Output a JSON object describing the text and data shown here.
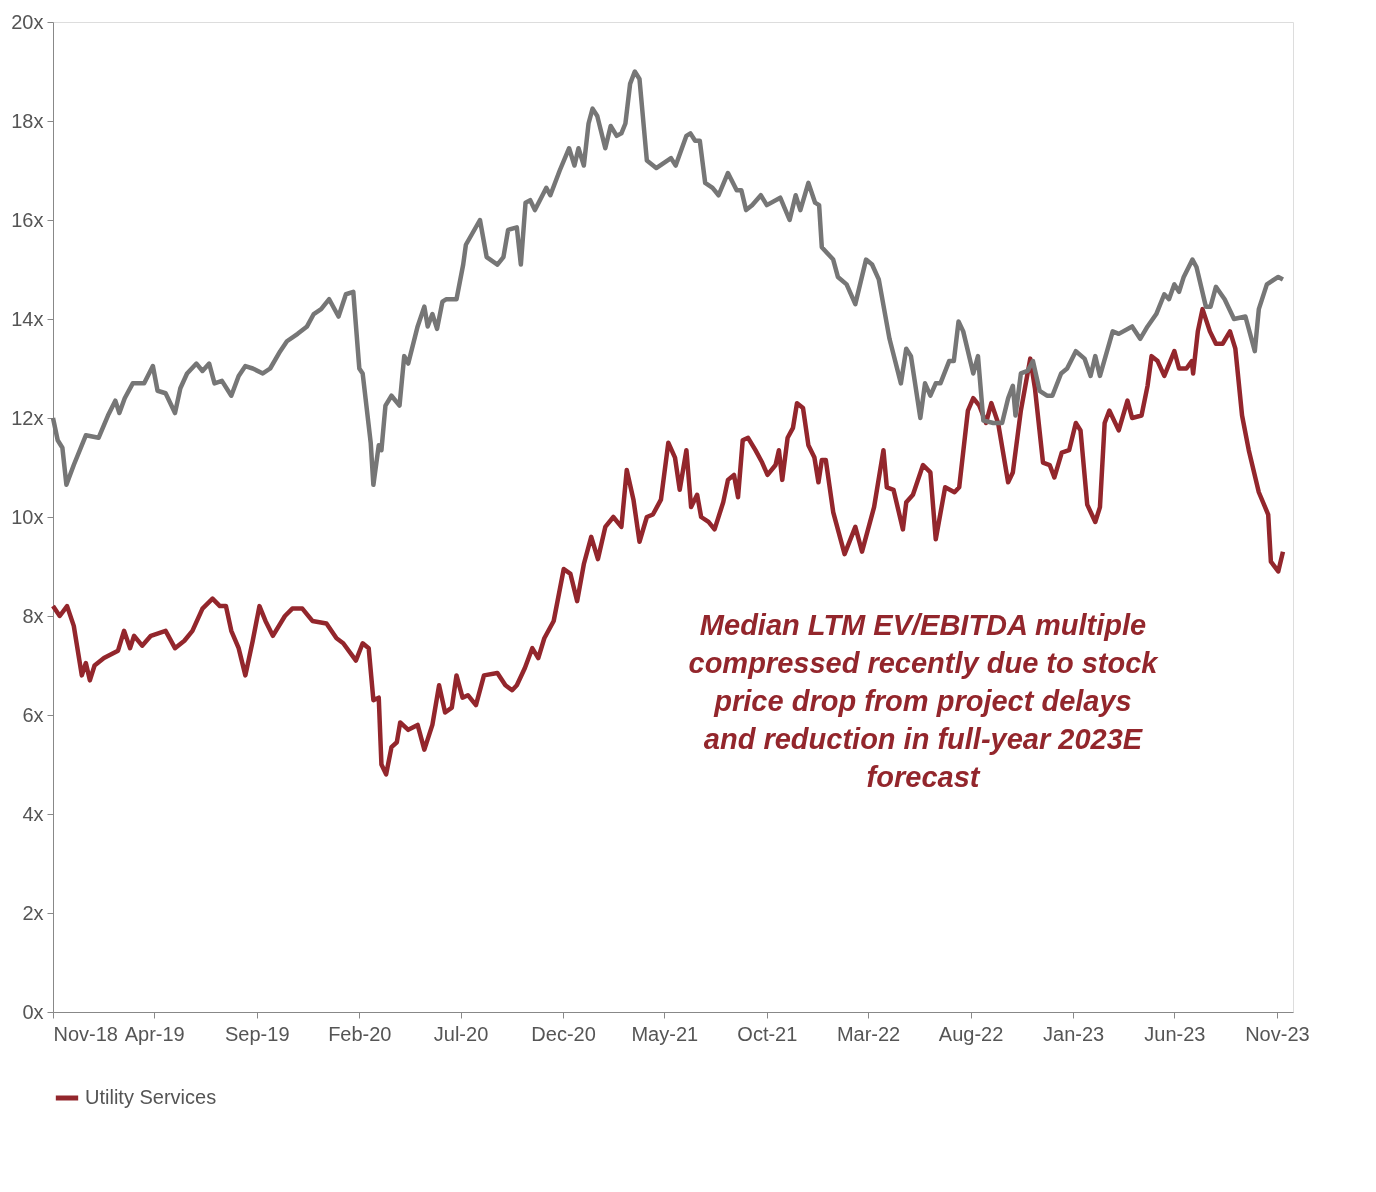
{
  "chart_data": {
    "type": "line",
    "annotations": [
      "Median LTM EV/EBITDA multiple compressed recently due to stock price drop from project delays and reduction in full-year 2023E forecast"
    ],
    "xlim": [
      "2018-11-01",
      "2023-11-25"
    ],
    "xticks": [
      {
        "value": "2018-11-01",
        "label": "Nov-18"
      },
      {
        "value": "2019-04-01",
        "label": "Apr-19"
      },
      {
        "value": "2019-09-01",
        "label": "Sep-19"
      },
      {
        "value": "2020-02-01",
        "label": "Feb-20"
      },
      {
        "value": "2020-07-01",
        "label": "Jul-20"
      },
      {
        "value": "2020-12-01",
        "label": "Dec-20"
      },
      {
        "value": "2021-05-01",
        "label": "May-21"
      },
      {
        "value": "2021-10-01",
        "label": "Oct-21"
      },
      {
        "value": "2022-03-01",
        "label": "Mar-22"
      },
      {
        "value": "2022-08-01",
        "label": "Aug-22"
      },
      {
        "value": "2023-01-01",
        "label": "Jan-23"
      },
      {
        "value": "2023-06-01",
        "label": "Jun-23"
      },
      {
        "value": "2023-11-01",
        "label": "Nov-23"
      }
    ],
    "ylim": [
      0,
      20
    ],
    "yticks": [
      {
        "value": 0,
        "label": "0x"
      },
      {
        "value": 2,
        "label": "2x"
      },
      {
        "value": 4,
        "label": "4x"
      },
      {
        "value": 6,
        "label": "6x"
      },
      {
        "value": 8,
        "label": "8x"
      },
      {
        "value": 10,
        "label": "10x"
      },
      {
        "value": 12,
        "label": "12x"
      },
      {
        "value": 14,
        "label": "14x"
      },
      {
        "value": 16,
        "label": "16x"
      },
      {
        "value": 18,
        "label": "18x"
      },
      {
        "value": 20,
        "label": "20x"
      }
    ],
    "grid": false,
    "legend": "bottom",
    "marker": "none",
    "line_style": "solid",
    "series": [
      {
        "name": "Utility Services",
        "color": "#93262c",
        "x": [
          "2018-11-01",
          "2018-11-11",
          "2018-11-22",
          "2018-12-02",
          "2018-12-14",
          "2018-12-20",
          "2018-12-26",
          "2019-01-02",
          "2019-01-16",
          "2019-02-06",
          "2019-02-15",
          "2019-02-24",
          "2019-03-02",
          "2019-03-14",
          "2019-03-27",
          "2019-04-18",
          "2019-05-02",
          "2019-05-16",
          "2019-05-28",
          "2019-06-12",
          "2019-06-27",
          "2019-07-08",
          "2019-07-17",
          "2019-07-25",
          "2019-08-05",
          "2019-08-15",
          "2019-08-26",
          "2019-09-05",
          "2019-09-14",
          "2019-09-25",
          "2019-10-13",
          "2019-10-24",
          "2019-11-08",
          "2019-11-23",
          "2019-12-14",
          "2019-12-29",
          "2020-01-08",
          "2020-01-27",
          "2020-02-06",
          "2020-02-15",
          "2020-02-22",
          "2020-03-01",
          "2020-03-05",
          "2020-03-12",
          "2020-03-20",
          "2020-03-28",
          "2020-04-02",
          "2020-04-14",
          "2020-04-28",
          "2020-05-08",
          "2020-05-20",
          "2020-05-30",
          "2020-06-08",
          "2020-06-18",
          "2020-06-25",
          "2020-07-04",
          "2020-07-12",
          "2020-07-24",
          "2020-08-05",
          "2020-08-25",
          "2020-09-06",
          "2020-09-16",
          "2020-09-23",
          "2020-10-05",
          "2020-10-16",
          "2020-10-25",
          "2020-11-03",
          "2020-11-17",
          "2020-12-02",
          "2020-12-12",
          "2020-12-22",
          "2021-01-01",
          "2021-01-12",
          "2021-01-22",
          "2021-02-02",
          "2021-02-14",
          "2021-02-26",
          "2021-03-06",
          "2021-03-16",
          "2021-03-25",
          "2021-04-05",
          "2021-04-14",
          "2021-04-26",
          "2021-05-07",
          "2021-05-17",
          "2021-05-24",
          "2021-06-03",
          "2021-06-10",
          "2021-06-19",
          "2021-06-25",
          "2021-07-06",
          "2021-07-15",
          "2021-07-28",
          "2021-08-04",
          "2021-08-13",
          "2021-08-19",
          "2021-08-26",
          "2021-09-03",
          "2021-09-14",
          "2021-09-24",
          "2021-10-02",
          "2021-10-14",
          "2021-10-19",
          "2021-10-24",
          "2021-11-01",
          "2021-11-09",
          "2021-11-15",
          "2021-11-24",
          "2021-12-02",
          "2021-12-11",
          "2021-12-17",
          "2021-12-22",
          "2021-12-28",
          "2022-01-08",
          "2022-01-25",
          "2022-02-10",
          "2022-02-20",
          "2022-03-10",
          "2022-03-24",
          "2022-03-29",
          "2022-04-08",
          "2022-04-22",
          "2022-04-27",
          "2022-05-07",
          "2022-05-22",
          "2022-06-02",
          "2022-06-10",
          "2022-06-24",
          "2022-07-08",
          "2022-07-15",
          "2022-07-28",
          "2022-08-05",
          "2022-08-14",
          "2022-08-24",
          "2022-09-01",
          "2022-09-11",
          "2022-09-26",
          "2022-10-03",
          "2022-10-15",
          "2022-10-29",
          "2022-11-05",
          "2022-11-17",
          "2022-11-27",
          "2022-12-04",
          "2022-12-15",
          "2022-12-26",
          "2023-01-05",
          "2023-01-12",
          "2023-01-22",
          "2023-02-03",
          "2023-02-10",
          "2023-02-17",
          "2023-02-24",
          "2023-03-10",
          "2023-03-23",
          "2023-03-30",
          "2023-04-13",
          "2023-04-22",
          "2023-04-28",
          "2023-05-07",
          "2023-05-17",
          "2023-06-01",
          "2023-06-08",
          "2023-06-19",
          "2023-06-27",
          "2023-06-29",
          "2023-07-06",
          "2023-07-13",
          "2023-07-24",
          "2023-08-02",
          "2023-08-12",
          "2023-08-23",
          "2023-08-31",
          "2023-09-10",
          "2023-09-20",
          "2023-10-05",
          "2023-10-19",
          "2023-10-23",
          "2023-11-03",
          "2023-11-10"
        ],
        "values": [
          8.2,
          8.0,
          8.2,
          7.8,
          6.8,
          7.05,
          6.7,
          7.0,
          7.15,
          7.3,
          7.7,
          7.35,
          7.6,
          7.4,
          7.6,
          7.7,
          7.35,
          7.5,
          7.7,
          8.15,
          8.35,
          8.2,
          8.2,
          7.7,
          7.35,
          6.8,
          7.5,
          8.2,
          7.9,
          7.6,
          8.0,
          8.15,
          8.15,
          7.9,
          7.85,
          7.55,
          7.45,
          7.1,
          7.45,
          7.35,
          6.3,
          6.35,
          5.0,
          4.8,
          5.35,
          5.45,
          5.85,
          5.7,
          5.8,
          5.3,
          5.8,
          6.6,
          6.05,
          6.15,
          6.8,
          6.35,
          6.4,
          6.2,
          6.8,
          6.85,
          6.6,
          6.5,
          6.6,
          6.95,
          7.35,
          7.15,
          7.55,
          7.9,
          8.95,
          8.85,
          8.3,
          9.05,
          9.6,
          9.15,
          9.8,
          10.0,
          9.8,
          10.95,
          10.35,
          9.5,
          10.0,
          10.05,
          10.35,
          11.5,
          11.2,
          10.55,
          11.35,
          10.2,
          10.45,
          10.0,
          9.9,
          9.75,
          10.3,
          10.75,
          10.85,
          10.4,
          11.55,
          11.6,
          11.35,
          11.1,
          10.85,
          11.05,
          11.35,
          10.75,
          11.6,
          11.8,
          12.3,
          12.2,
          11.45,
          11.2,
          10.7,
          11.15,
          11.15,
          10.1,
          9.25,
          9.8,
          9.3,
          10.2,
          11.35,
          10.6,
          10.55,
          9.75,
          10.3,
          10.45,
          11.05,
          10.9,
          9.55,
          10.6,
          10.5,
          10.6,
          12.15,
          12.4,
          12.25,
          11.9,
          12.3,
          11.9,
          10.7,
          10.9,
          12.15,
          13.2,
          12.6,
          11.1,
          11.05,
          10.8,
          11.3,
          11.35,
          11.9,
          11.75,
          10.25,
          9.9,
          10.2,
          11.9,
          12.15,
          11.75,
          12.35,
          12.0,
          12.05,
          12.65,
          13.25,
          13.15,
          12.85,
          13.35,
          13.0,
          13.0,
          13.15,
          12.9,
          13.75,
          14.2,
          13.75,
          13.5,
          13.5,
          13.75,
          13.4,
          12.05,
          11.35,
          10.5,
          10.05,
          9.1,
          8.9,
          9.3
        ]
      },
      {
        "color": "#767676",
        "x": [
          "2018-11-01",
          "2018-11-08",
          "2018-11-15",
          "2018-11-21",
          "2018-12-02",
          "2018-12-20",
          "2019-01-08",
          "2019-01-22",
          "2019-02-02",
          "2019-02-08",
          "2019-02-16",
          "2019-02-28",
          "2019-03-17",
          "2019-03-30",
          "2019-04-06",
          "2019-04-18",
          "2019-05-02",
          "2019-05-10",
          "2019-05-20",
          "2019-06-03",
          "2019-06-12",
          "2019-06-22",
          "2019-06-30",
          "2019-07-11",
          "2019-07-25",
          "2019-08-05",
          "2019-08-15",
          "2019-08-26",
          "2019-09-10",
          "2019-09-21",
          "2019-10-06",
          "2019-10-16",
          "2019-11-01",
          "2019-11-15",
          "2019-11-25",
          "2019-12-06",
          "2019-12-18",
          "2020-01-01",
          "2020-01-12",
          "2020-01-23",
          "2020-02-01",
          "2020-02-06",
          "2020-02-18",
          "2020-02-22",
          "2020-03-01",
          "2020-03-05",
          "2020-03-11",
          "2020-03-20",
          "2020-04-01",
          "2020-04-08",
          "2020-04-14",
          "2020-04-28",
          "2020-05-08",
          "2020-05-13",
          "2020-05-20",
          "2020-05-27",
          "2020-06-04",
          "2020-06-10",
          "2020-06-25",
          "2020-07-05",
          "2020-07-09",
          "2020-07-30",
          "2020-08-09",
          "2020-08-25",
          "2020-09-03",
          "2020-09-10",
          "2020-09-23",
          "2020-09-29",
          "2020-10-06",
          "2020-10-13",
          "2020-10-20",
          "2020-11-06",
          "2020-11-12",
          "2020-11-26",
          "2020-12-10",
          "2020-12-18",
          "2020-12-24",
          "2021-01-01",
          "2021-01-08",
          "2021-01-14",
          "2021-01-21",
          "2021-02-02",
          "2021-02-10",
          "2021-02-19",
          "2021-02-26",
          "2021-03-04",
          "2021-03-11",
          "2021-03-18",
          "2021-03-25",
          "2021-04-05",
          "2021-04-19",
          "2021-05-11",
          "2021-05-18",
          "2021-06-03",
          "2021-06-09",
          "2021-06-16",
          "2021-06-23",
          "2021-07-01",
          "2021-07-12",
          "2021-07-21",
          "2021-08-04",
          "2021-08-17",
          "2021-08-24",
          "2021-08-31",
          "2021-09-09",
          "2021-09-22",
          "2021-10-01",
          "2021-10-21",
          "2021-11-04",
          "2021-11-13",
          "2021-11-20",
          "2021-12-02",
          "2021-12-12",
          "2021-12-18",
          "2021-12-22",
          "2022-01-08",
          "2022-01-15",
          "2022-01-28",
          "2022-02-10",
          "2022-02-26",
          "2022-03-07",
          "2022-03-17",
          "2022-04-02",
          "2022-04-19",
          "2022-04-27",
          "2022-05-04",
          "2022-05-18",
          "2022-05-25",
          "2022-06-02",
          "2022-06-10",
          "2022-06-17",
          "2022-06-30",
          "2022-07-07",
          "2022-07-14",
          "2022-07-21",
          "2022-08-05",
          "2022-08-12",
          "2022-08-20",
          "2022-09-04",
          "2022-09-17",
          "2022-09-26",
          "2022-10-03",
          "2022-10-07",
          "2022-10-15",
          "2022-10-25",
          "2022-11-02",
          "2022-11-12",
          "2022-11-23",
          "2022-12-01",
          "2022-12-14",
          "2022-12-23",
          "2023-01-05",
          "2023-01-18",
          "2023-01-27",
          "2023-02-03",
          "2023-02-10",
          "2023-03-01",
          "2023-03-10",
          "2023-03-30",
          "2023-04-11",
          "2023-04-22",
          "2023-05-05",
          "2023-05-17",
          "2023-05-24",
          "2023-06-01",
          "2023-06-08",
          "2023-06-15",
          "2023-06-28",
          "2023-07-04",
          "2023-07-18",
          "2023-07-25",
          "2023-08-02",
          "2023-08-15",
          "2023-08-29",
          "2023-09-15",
          "2023-09-29",
          "2023-10-05",
          "2023-10-17",
          "2023-11-03",
          "2023-11-10"
        ],
        "values": [
          12.0,
          11.55,
          11.4,
          10.65,
          11.05,
          11.65,
          11.6,
          12.05,
          12.35,
          12.1,
          12.4,
          12.7,
          12.7,
          13.05,
          12.55,
          12.5,
          12.1,
          12.6,
          12.9,
          13.1,
          12.95,
          13.1,
          12.7,
          12.75,
          12.45,
          12.85,
          13.05,
          13.0,
          12.9,
          13.0,
          13.35,
          13.55,
          13.7,
          13.85,
          14.1,
          14.2,
          14.4,
          14.05,
          14.5,
          14.55,
          13.0,
          12.9,
          11.5,
          10.65,
          11.45,
          11.35,
          12.25,
          12.45,
          12.25,
          13.25,
          13.1,
          13.85,
          14.25,
          13.85,
          14.1,
          13.8,
          14.35,
          14.4,
          14.4,
          15.1,
          15.5,
          16.0,
          15.25,
          15.1,
          15.25,
          15.8,
          15.85,
          15.1,
          16.35,
          16.4,
          16.2,
          16.65,
          16.5,
          17.0,
          17.45,
          17.1,
          17.45,
          17.1,
          17.95,
          18.25,
          18.1,
          17.45,
          17.9,
          17.7,
          17.75,
          17.95,
          18.75,
          19.0,
          18.85,
          17.2,
          17.05,
          17.25,
          17.1,
          17.7,
          17.75,
          17.6,
          17.6,
          16.75,
          16.65,
          16.5,
          16.95,
          16.6,
          16.6,
          16.2,
          16.3,
          16.5,
          16.3,
          16.45,
          16.0,
          16.5,
          16.2,
          16.75,
          16.35,
          16.3,
          15.45,
          15.2,
          14.85,
          14.7,
          14.3,
          15.2,
          15.1,
          14.8,
          13.6,
          12.7,
          13.4,
          13.25,
          12.0,
          12.7,
          12.45,
          12.7,
          12.7,
          13.15,
          13.15,
          13.95,
          13.75,
          12.9,
          13.25,
          11.95,
          11.9,
          11.9,
          12.4,
          12.65,
          12.05,
          12.9,
          12.95,
          13.15,
          12.55,
          12.45,
          12.45,
          12.9,
          13.0,
          13.35,
          13.2,
          12.85,
          13.25,
          12.85,
          13.75,
          13.7,
          13.85,
          13.6,
          13.85,
          14.1,
          14.5,
          14.4,
          14.7,
          14.55,
          14.85,
          15.2,
          15.05,
          14.25,
          14.25,
          14.65,
          14.4,
          14.0,
          14.05,
          13.35,
          14.2,
          14.7,
          14.85,
          14.8
        ]
      }
    ]
  }
}
